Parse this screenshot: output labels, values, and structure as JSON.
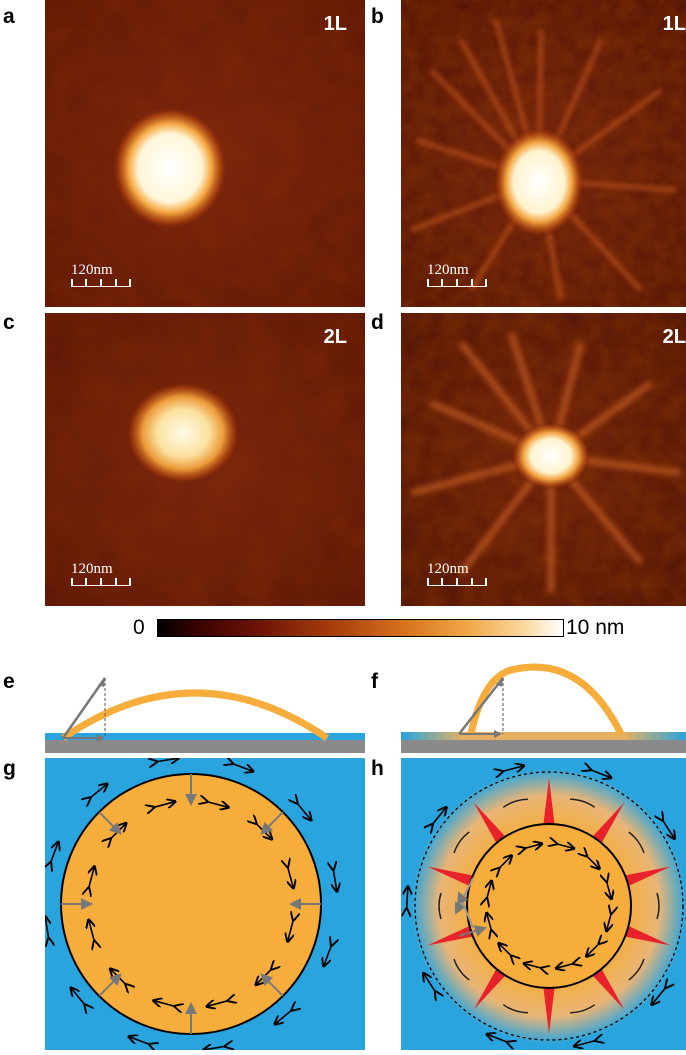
{
  "panels": {
    "a": {
      "label": "a",
      "layer": "1L",
      "scale_text": "120nm"
    },
    "b": {
      "label": "b",
      "layer": "1L",
      "scale_text": "120nm"
    },
    "c": {
      "label": "c",
      "layer": "2L",
      "scale_text": "120nm"
    },
    "d": {
      "label": "d",
      "layer": "2L",
      "scale_text": "120nm"
    },
    "e": {
      "label": "e"
    },
    "f": {
      "label": "f"
    },
    "g": {
      "label": "g"
    },
    "h": {
      "label": "h"
    }
  },
  "colorbar": {
    "min_label": "0",
    "max_label": "10 nm"
  },
  "colors": {
    "water_blue": "#29a4df",
    "bubble_orange": "#f6ad3c",
    "substrate_gray": "#8a8a8a",
    "arrow_gray": "#777777",
    "wrinkle_red": "#e8222a"
  }
}
